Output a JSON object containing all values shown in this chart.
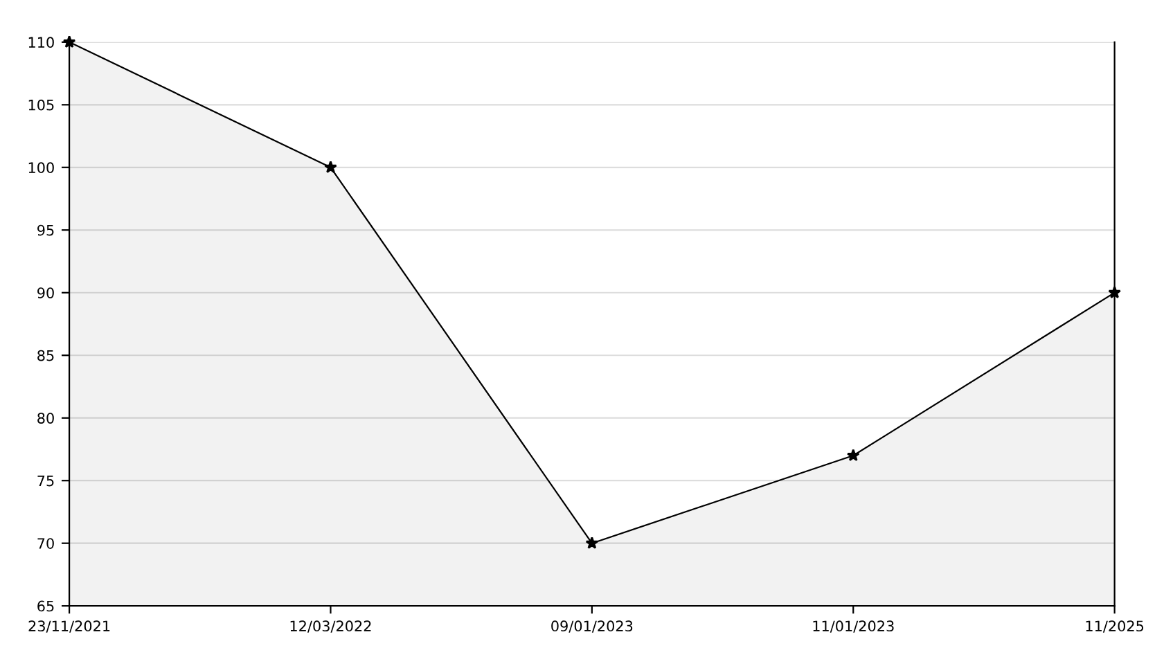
{
  "chart_data": {
    "type": "area",
    "categories": [
      "23/11/2021",
      "12/03/2022",
      "09/01/2023",
      "11/01/2023",
      "11/2025"
    ],
    "series": [
      {
        "color": "#000000",
        "values": [
          110,
          100,
          70,
          77,
          90
        ]
      }
    ],
    "ylim": [
      65,
      110
    ],
    "yticks": [
      65,
      70,
      75,
      80,
      85,
      90,
      95,
      100,
      105,
      110
    ],
    "grid": "y",
    "marker": "star",
    "line_style": "solid",
    "legend": false
  }
}
